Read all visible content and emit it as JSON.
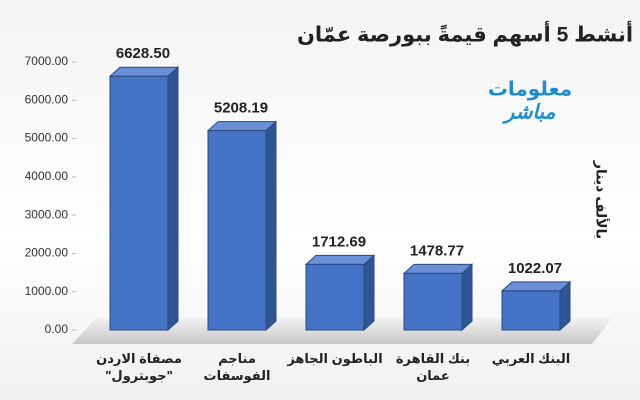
{
  "chart_data": {
    "type": "bar3d",
    "title": "أنشط 5 أسهم قيمةً ببورصة عمّان",
    "y_label": "بالألف دينار",
    "logo": {
      "line1": "معلومات",
      "line2": "مباشر"
    },
    "categories": [
      "مصفاة الاردن \"جوبترول\"",
      "مناجم الفوسفات",
      "الباطون الجاهز",
      "بنك القاهرة عمان",
      "البنك العربي"
    ],
    "values": [
      6628.5,
      5208.19,
      1712.69,
      1478.77,
      1022.07
    ],
    "value_labels": [
      "6628.50",
      "5208.19",
      "1712.69",
      "1478.77",
      "1022.07"
    ],
    "color": "#4472c4",
    "ylim": [
      0,
      7000
    ],
    "yticks": [
      {
        "value": 0,
        "label": "0.00"
      },
      {
        "value": 1000,
        "label": "1000.00"
      },
      {
        "value": 2000,
        "label": "2000.00"
      },
      {
        "value": 3000,
        "label": "3000.00"
      },
      {
        "value": 4000,
        "label": "4000.00"
      },
      {
        "value": 5000,
        "label": "5000.00"
      },
      {
        "value": 6000,
        "label": "6000.00"
      },
      {
        "value": 7000,
        "label": "7000.00"
      }
    ]
  }
}
